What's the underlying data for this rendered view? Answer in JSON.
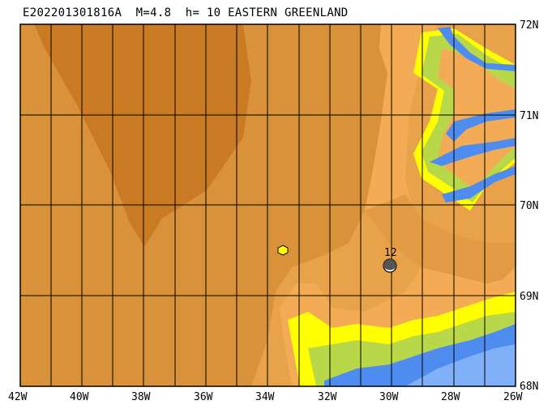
{
  "title": "E202201301816A  M=4.8  h= 10 EASTERN GREENLAND",
  "latitude_labels": [
    "72N",
    "71N",
    "70N",
    "69N",
    "68N"
  ],
  "longitude_labels": [
    "42W",
    "40W",
    "38W",
    "36W",
    "34W",
    "32W",
    "30W",
    "28W",
    "26W"
  ],
  "station_label": "12",
  "legend_colors": {
    "deep_ice": "#c97a22",
    "ice": "#d9923a",
    "plateau": "#e8a24a",
    "highland": "#f4ab55",
    "lowland_yellow": "#ffff00",
    "coastal_green": "#b8d84a",
    "shallow_water": "#4f8cf0",
    "deep_water": "#7fb0f8",
    "epicenter": "#ffff00"
  }
}
